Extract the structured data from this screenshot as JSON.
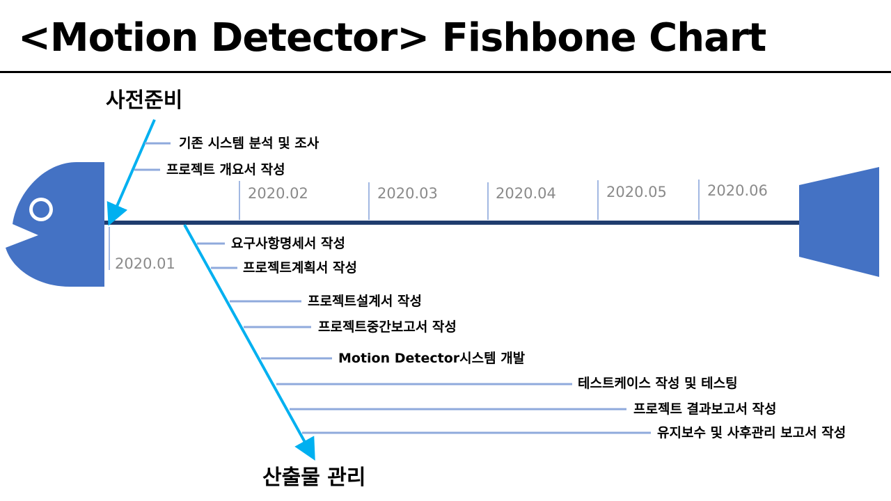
{
  "title": "<Motion Detector> Fishbone Chart",
  "categories": {
    "top": "사전준비",
    "bottom": "산출물 관리"
  },
  "dates": [
    "2020.01",
    "2020.02",
    "2020.03",
    "2020.04",
    "2020.05",
    "2020.06"
  ],
  "top_items": [
    "기존 시스템 분석 및 조사",
    "프로젝트 개요서 작성"
  ],
  "bottom_items": [
    "요구사항명세서 작성",
    "프로젝트계획서 작성",
    "프로젝트설계서 작성",
    "프로젝트중간보고서 작성",
    "Motion Detector시스템 개발",
    "테스트케이스 작성 및 테스팅",
    "프로젝트 결과보고서 작성",
    "유지보수 및 사후관리 보고서 작성"
  ],
  "colors": {
    "fish": "#4472c4",
    "spine": "#1f3c6e",
    "arrow": "#00b0f0",
    "rib": "#8faadc",
    "date_tick": "#4472c4",
    "date_text": "#8a8a8a"
  }
}
